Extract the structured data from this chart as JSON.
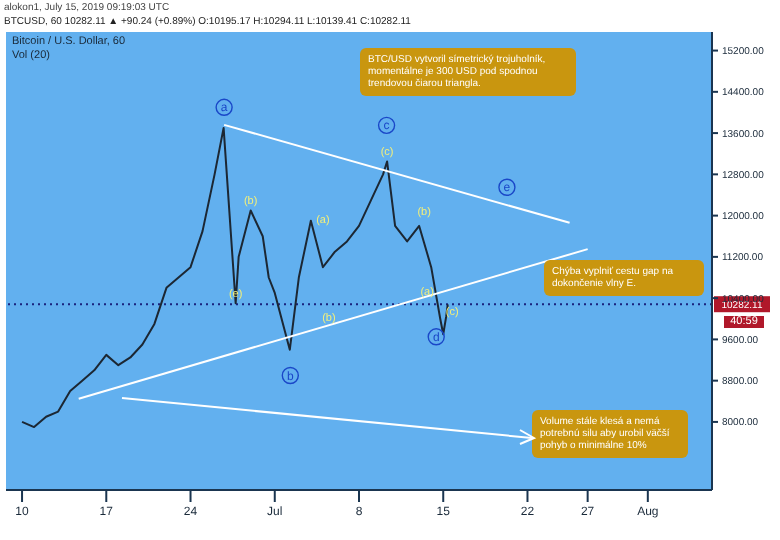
{
  "chart_data": {
    "type": "line",
    "title": "Bitcoin / U.S. Dollar, 60",
    "subtitle": "BTCUSD, 60 10282.11 ▲ +90.24 (+0.89%) O:10195.17 H:10294.11 L:10139.41 C:10282.11",
    "annotations": [
      "alokon1, July 15, 2019 09:19:03 UTC",
      "Vol (20)",
      "BTC/USD vytvoril símetrický trojuholník, momentálne je 300 USD pod spodnou trendovou čiarou triangla.",
      "Chýba vyplniť cestu gap na dokončenie vlny E.",
      "Volume stále klesá a nemá potrebnú silu aby urobil väčší pohyb o minimálne 10%",
      "40:59",
      {
        "text": "a",
        "x": "2019-06-26T19:00",
        "y": 14100
      },
      {
        "text": "b",
        "x": "2019-07-02T07:00",
        "y": 8900
      },
      {
        "text": "c",
        "x": "2019-07-10T07:00",
        "y": 13750
      },
      {
        "text": "d",
        "x": "2019-07-14T10:00",
        "y": 9650
      },
      {
        "text": "e",
        "x": "2019-07-20T07:00",
        "y": 12550
      },
      {
        "text": "(b)",
        "x": "2019-06-29",
        "y": 12100
      },
      {
        "text": "(e)",
        "x": "2019-06-27T18:00",
        "y": 10300
      },
      {
        "text": "(a)",
        "x": "2019-07-05T00:00",
        "y": 11750
      },
      {
        "text": "(b)",
        "x": "2019-07-05T12:00",
        "y": 9850
      },
      {
        "text": "(b)",
        "x": "2019-07-13T10:00",
        "y": 11900
      },
      {
        "text": "(a)",
        "x": "2019-07-13T16:00",
        "y": 10350
      },
      {
        "text": "(c)",
        "x": "2019-07-15T18:00",
        "y": 9950
      },
      {
        "text": "(c)",
        "x": "2019-07-10T08:00",
        "y": 13050
      }
    ],
    "xlim": [
      "2019-06-08T16:00",
      "2019-08-06T08:00"
    ],
    "xticks": [
      {
        "value": "2019-06-10",
        "label": "10"
      },
      {
        "value": "2019-06-17",
        "label": "17"
      },
      {
        "value": "2019-06-24",
        "label": "24"
      },
      {
        "value": "2019-07-01",
        "label": "Jul"
      },
      {
        "value": "2019-07-08",
        "label": "8"
      },
      {
        "value": "2019-07-15",
        "label": "15"
      },
      {
        "value": "2019-07-22",
        "label": "22"
      },
      {
        "value": "2019-07-27",
        "label": "27"
      },
      {
        "value": "2019-08-01",
        "label": "Aug"
      }
    ],
    "ylim": [
      6680,
      15560
    ],
    "yticks": [
      {
        "value": 8000,
        "label": "8000.00"
      },
      {
        "value": 8800,
        "label": "8800.00"
      },
      {
        "value": 9600,
        "label": "9600.00"
      },
      {
        "value": 10400,
        "label": "10400.00"
      },
      {
        "value": 11200,
        "label": "11200.00"
      },
      {
        "value": 12000,
        "label": "12000.00"
      },
      {
        "value": 12800,
        "label": "12800.00"
      },
      {
        "value": 13600,
        "label": "13600.00"
      },
      {
        "value": 14400,
        "label": "14400.00"
      },
      {
        "value": 15200,
        "label": "15200.00"
      }
    ],
    "ref_lines": [
      {
        "axis": "y",
        "value": 10282.11,
        "label": "10282.11",
        "color": "#1a237e",
        "line_style": "dotted"
      }
    ],
    "x": [
      "2019-06-10",
      "2019-06-11",
      "2019-06-12",
      "2019-06-13",
      "2019-06-14",
      "2019-06-15",
      "2019-06-16",
      "2019-06-17",
      "2019-06-18",
      "2019-06-19",
      "2019-06-20",
      "2019-06-21",
      "2019-06-22",
      "2019-06-23",
      "2019-06-24",
      "2019-06-25",
      "2019-06-26",
      "2019-06-26T18:00",
      "2019-06-27T06:00",
      "2019-06-27T18:00",
      "2019-06-28",
      "2019-06-29",
      "2019-06-30",
      "2019-06-30T12:00",
      "2019-07-01",
      "2019-07-02T06:00",
      "2019-07-03",
      "2019-07-04",
      "2019-07-05",
      "2019-07-06",
      "2019-07-07",
      "2019-07-08",
      "2019-07-09",
      "2019-07-10",
      "2019-07-10T08:00",
      "2019-07-11",
      "2019-07-12",
      "2019-07-13",
      "2019-07-14",
      "2019-07-14T18:00",
      "2019-07-15T00:00",
      "2019-07-15T06:00",
      "2019-07-15T09:00"
    ],
    "series": [
      {
        "color": "#1c2733",
        "values": [
          8000,
          7900,
          8100,
          8200,
          8600,
          8800,
          9000,
          9300,
          9100,
          9250,
          9500,
          9900,
          10600,
          10800,
          11000,
          11700,
          12800,
          13700,
          12000,
          10300,
          11200,
          12100,
          11600,
          10800,
          10500,
          9400,
          10800,
          11900,
          11000,
          11300,
          11500,
          11800,
          12300,
          12800,
          13050,
          11800,
          11500,
          11800,
          11000,
          10000,
          9700,
          10050,
          10280
        ]
      },
      {
        "type": "line",
        "color": "#ffffff",
        "x": [
          "2019-06-26T19:00",
          "2019-07-25T12:00"
        ],
        "values": [
          13760,
          11860
        ]
      },
      {
        "type": "line",
        "color": "#ffffff",
        "x": [
          "2019-06-14T17:00",
          "2019-07-27T00:00"
        ],
        "values": [
          8450,
          11350
        ]
      }
    ]
  }
}
